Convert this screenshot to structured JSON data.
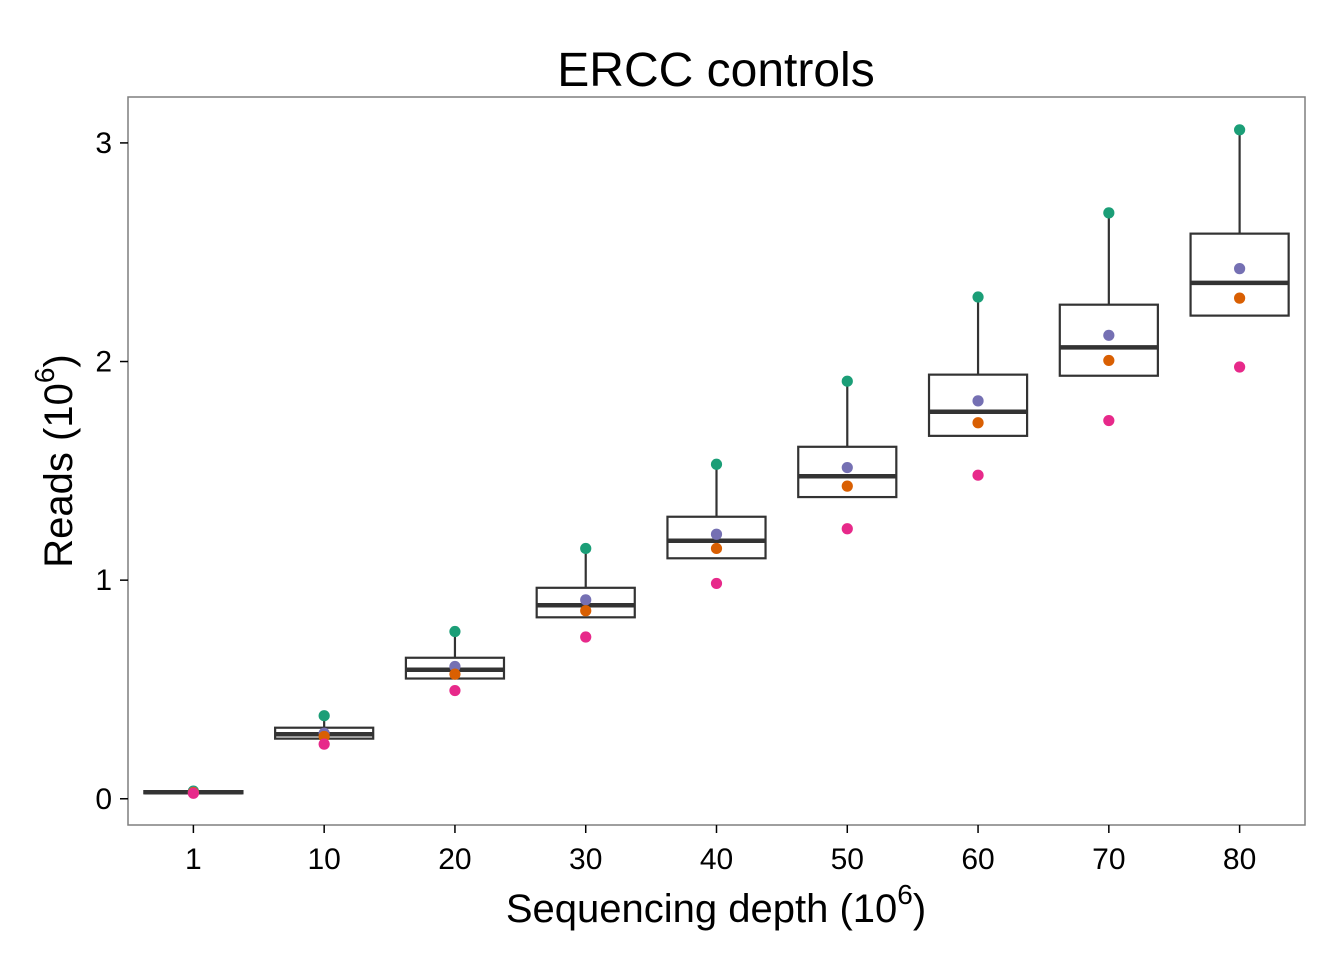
{
  "chart_data": {
    "type": "box",
    "title": "ERCC controls",
    "xlabel_main": "Sequencing depth (10",
    "xlabel_sup": "6",
    "xlabel_close": ")",
    "ylabel_main": "Reads (10",
    "ylabel_sup": "6",
    "ylabel_close": ")",
    "categories": [
      "1",
      "10",
      "20",
      "30",
      "40",
      "50",
      "60",
      "70",
      "80"
    ],
    "yticks": [
      "0",
      "1",
      "2",
      "3"
    ],
    "ylim": [
      -0.12,
      3.21
    ],
    "grid": false,
    "boxes": [
      {
        "q1": 0.025,
        "median": 0.03,
        "q3": 0.035,
        "whisker_low": 0.025,
        "whisker_high": 0.035
      },
      {
        "q1": 0.275,
        "median": 0.295,
        "q3": 0.325,
        "whisker_low": 0.275,
        "whisker_high": 0.38
      },
      {
        "q1": 0.55,
        "median": 0.59,
        "q3": 0.645,
        "whisker_low": 0.55,
        "whisker_high": 0.765
      },
      {
        "q1": 0.83,
        "median": 0.885,
        "q3": 0.965,
        "whisker_low": 0.83,
        "whisker_high": 1.145
      },
      {
        "q1": 1.1,
        "median": 1.18,
        "q3": 1.29,
        "whisker_low": 1.1,
        "whisker_high": 1.53
      },
      {
        "q1": 1.38,
        "median": 1.475,
        "q3": 1.61,
        "whisker_low": 1.38,
        "whisker_high": 1.91
      },
      {
        "q1": 1.66,
        "median": 1.77,
        "q3": 1.94,
        "whisker_low": 1.66,
        "whisker_high": 2.295
      },
      {
        "q1": 1.935,
        "median": 2.065,
        "q3": 2.26,
        "whisker_low": 1.935,
        "whisker_high": 2.68
      },
      {
        "q1": 2.21,
        "median": 2.36,
        "q3": 2.585,
        "whisker_low": 2.21,
        "whisker_high": 3.06
      }
    ],
    "series": [
      {
        "color": "#1b9e77",
        "values": [
          0.035,
          0.38,
          0.765,
          1.145,
          1.53,
          1.91,
          2.295,
          2.68,
          3.06
        ]
      },
      {
        "color": "#7570b3",
        "values": [
          0.03,
          0.3,
          0.605,
          0.91,
          1.21,
          1.515,
          1.82,
          2.12,
          2.425
        ]
      },
      {
        "color": "#d95f02",
        "values": [
          0.028,
          0.285,
          0.57,
          0.86,
          1.145,
          1.43,
          1.72,
          2.005,
          2.29
        ]
      },
      {
        "color": "#e7298a",
        "values": [
          0.025,
          0.25,
          0.495,
          0.74,
          0.985,
          1.235,
          1.48,
          1.73,
          1.975
        ]
      }
    ],
    "colors": {
      "box_line": "#333333",
      "panel_border": "#7f7f7f",
      "tick": "#000000"
    }
  }
}
